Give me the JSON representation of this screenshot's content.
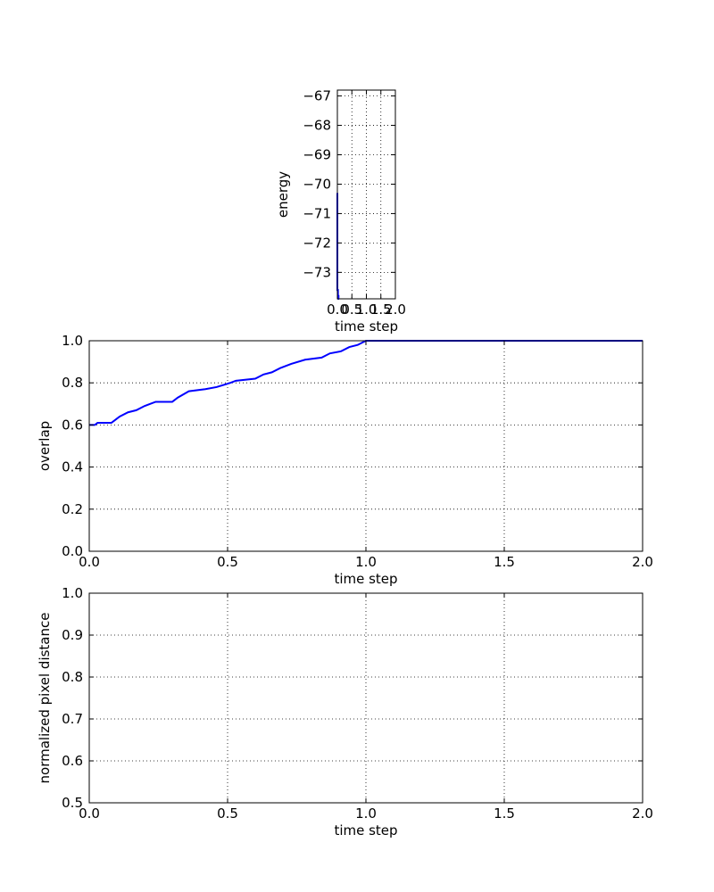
{
  "chart_data": [
    {
      "type": "line",
      "title": "",
      "xlabel": "time step",
      "ylabel": "energy",
      "xlim": [
        0,
        2.0
      ],
      "ylim": [
        -73.9,
        -66.8
      ],
      "grid": true,
      "xticks": [
        0.0,
        0.5,
        1.0,
        1.5,
        2.0
      ],
      "xtick_labels": [
        "0.0",
        "0.5",
        "1.0",
        "1.5",
        "2.0"
      ],
      "yticks": [
        -73,
        -72,
        -71,
        -70,
        -69,
        -68,
        -67
      ],
      "ytick_labels": [
        "−73",
        "−72",
        "−71",
        "−70",
        "−69",
        "−68",
        "−67"
      ],
      "series": [
        {
          "color": "#0000ff",
          "x": [
            0.0,
            0.0,
            0.02,
            0.02,
            0.04,
            0.04,
            0.06
          ],
          "y": [
            -70.3,
            -73.6,
            -73.6,
            -73.8,
            -73.8,
            -73.9,
            -73.9
          ]
        }
      ]
    },
    {
      "type": "line",
      "title": "",
      "xlabel": "time step",
      "ylabel": "overlap",
      "xlim": [
        0,
        2.0
      ],
      "ylim": [
        0,
        1.0
      ],
      "grid": true,
      "xticks": [
        0.0,
        0.5,
        1.0,
        1.5,
        2.0
      ],
      "xtick_labels": [
        "0.0",
        "0.5",
        "1.0",
        "1.5",
        "2.0"
      ],
      "yticks": [
        0.0,
        0.2,
        0.4,
        0.6,
        0.8,
        1.0
      ],
      "ytick_labels": [
        "0.0",
        "0.2",
        "0.4",
        "0.6",
        "0.8",
        "1.0"
      ],
      "series": [
        {
          "color": "#0000ff",
          "x": [
            0.0,
            0.02,
            0.03,
            0.08,
            0.09,
            0.1,
            0.11,
            0.14,
            0.17,
            0.2,
            0.22,
            0.24,
            0.3,
            0.32,
            0.36,
            0.42,
            0.46,
            0.51,
            0.53,
            0.6,
            0.63,
            0.66,
            0.69,
            0.73,
            0.78,
            0.84,
            0.87,
            0.91,
            0.94,
            0.97,
            1.0,
            2.0
          ],
          "y": [
            0.6,
            0.6,
            0.61,
            0.61,
            0.62,
            0.63,
            0.64,
            0.66,
            0.67,
            0.69,
            0.7,
            0.71,
            0.71,
            0.73,
            0.76,
            0.77,
            0.78,
            0.8,
            0.81,
            0.82,
            0.84,
            0.85,
            0.87,
            0.89,
            0.91,
            0.92,
            0.94,
            0.95,
            0.97,
            0.98,
            1.0,
            1.0
          ]
        }
      ]
    },
    {
      "type": "line",
      "title": "",
      "xlabel": "time step",
      "ylabel": "normalized pixel distance",
      "xlim": [
        0,
        2.0
      ],
      "ylim": [
        0.5,
        1.0
      ],
      "grid": true,
      "xticks": [
        0.0,
        0.5,
        1.0,
        1.5,
        2.0
      ],
      "xtick_labels": [
        "0.0",
        "0.5",
        "1.0",
        "1.5",
        "2.0"
      ],
      "yticks": [
        0.5,
        0.6,
        0.7,
        0.8,
        0.9,
        1.0
      ],
      "ytick_labels": [
        "0.5",
        "0.6",
        "0.7",
        "0.8",
        "0.9",
        "1.0"
      ],
      "series": []
    }
  ]
}
